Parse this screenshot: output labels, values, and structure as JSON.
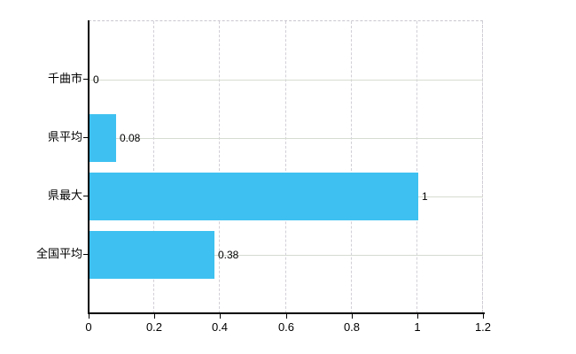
{
  "chart_data": {
    "type": "bar",
    "orientation": "horizontal",
    "title": "",
    "xlabel": "",
    "ylabel": "",
    "categories": [
      "千曲市",
      "県平均",
      "県最大",
      "全国平均"
    ],
    "values": [
      0,
      0.08,
      1,
      0.38
    ],
    "value_labels": [
      "0",
      "0.08",
      "1",
      "0.38"
    ],
    "xlim": [
      0,
      1.2
    ],
    "x_ticks": [
      0,
      0.2,
      0.4,
      0.6,
      0.8,
      1,
      1.2
    ],
    "x_tick_labels": [
      "0",
      "0.2",
      "0.4",
      "0.6",
      "0.8",
      "1",
      "1.2"
    ],
    "grid": true,
    "legend": false,
    "gridline_style": {
      "horizontal": "solid",
      "vertical": "dashed"
    }
  },
  "colors": {
    "bar": "#3ec1f0",
    "axis": "#000000",
    "text": "#000000",
    "grid_horizontal": "#d5dcd1",
    "grid_vertical": "#d2cfd7",
    "plot_border": "#c9c6ce",
    "background": "#ffffff"
  }
}
